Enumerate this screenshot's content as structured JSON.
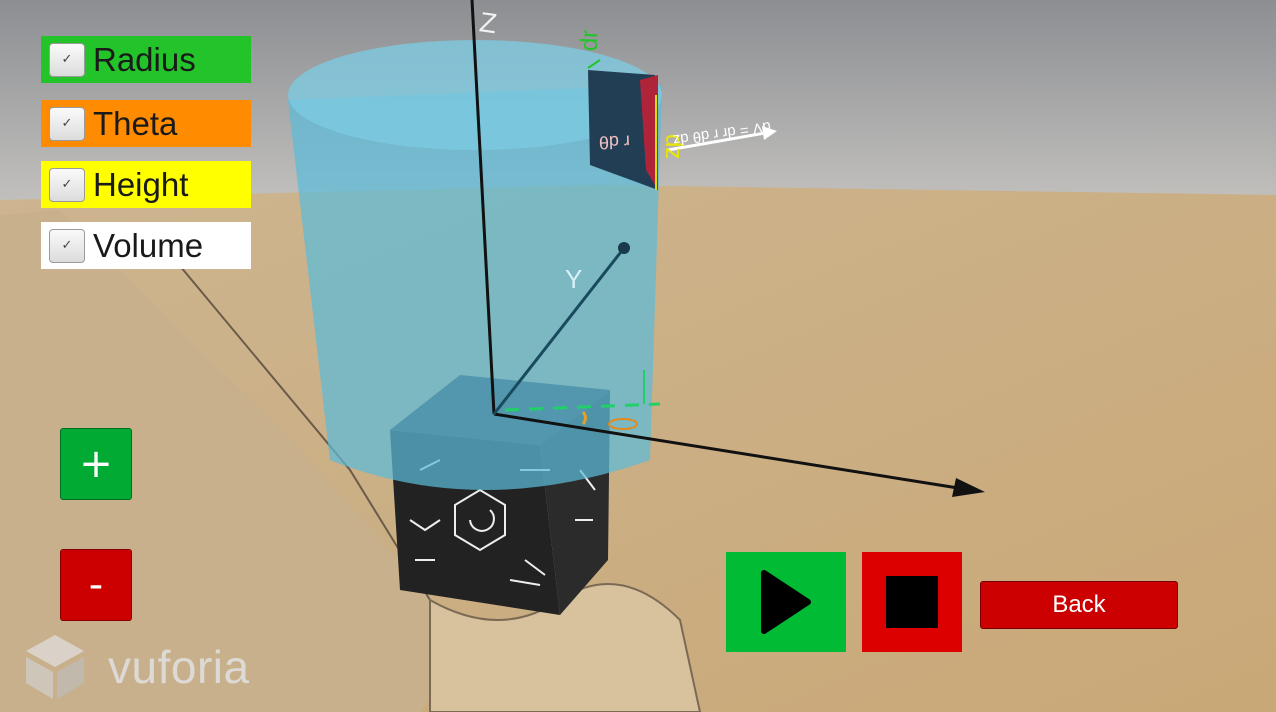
{
  "toggles": [
    {
      "label": "Radius",
      "color": "#22c42a",
      "checked": true
    },
    {
      "label": "Theta",
      "color": "#ff8c00",
      "checked": true
    },
    {
      "label": "Height",
      "color": "#ffff00",
      "checked": true
    },
    {
      "label": "Volume",
      "color": "#ffffff",
      "checked": true
    }
  ],
  "controls": {
    "plus_label": "+",
    "minus_label": "-",
    "back_label": "Back"
  },
  "scene_labels": {
    "z_axis": "Z",
    "y_axis": "Y",
    "dr": "dr",
    "dz": "dz",
    "r_dtheta": "r dθ",
    "volume_formula": "dV = dr r dθ dz"
  },
  "logo": {
    "text": "vuforia"
  },
  "colors": {
    "cylinder": "#5bbbd8",
    "play_button": "#00bb33",
    "stop_button": "#dd0000",
    "plus_button": "#00aa33",
    "minus_button": "#cc0000",
    "back_button": "#cc0000"
  }
}
